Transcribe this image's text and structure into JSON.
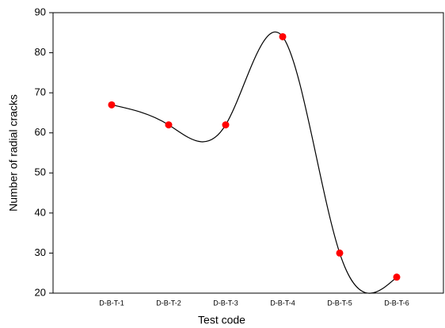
{
  "chart_data": {
    "type": "line",
    "x_label": "Test code",
    "y_label": "Number of radial cracks",
    "categories": [
      "D-B-T-1",
      "D-B-T-2",
      "D-B-T-3",
      "D-B-T-4",
      "D-B-T-5",
      "D-B-T-6"
    ],
    "values": [
      67,
      62,
      62,
      84,
      30,
      24
    ],
    "line_color": "#000000",
    "marker_color": "#ff0000",
    "smooth": true,
    "ylim": [
      20,
      90
    ],
    "yticks": [
      20,
      30,
      40,
      50,
      60,
      70,
      80,
      90
    ]
  }
}
